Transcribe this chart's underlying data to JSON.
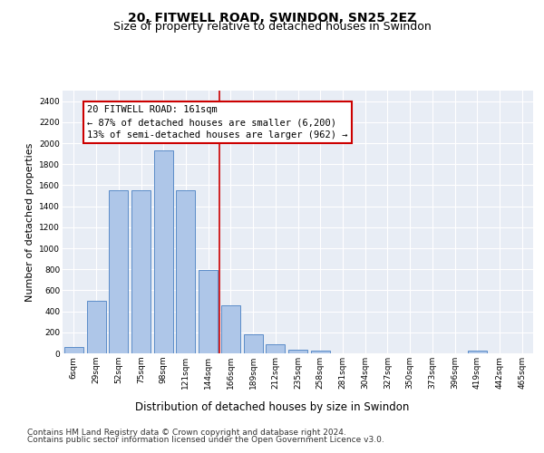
{
  "title": "20, FITWELL ROAD, SWINDON, SN25 2EZ",
  "subtitle": "Size of property relative to detached houses in Swindon",
  "xlabel": "Distribution of detached houses by size in Swindon",
  "ylabel": "Number of detached properties",
  "categories": [
    "6sqm",
    "29sqm",
    "52sqm",
    "75sqm",
    "98sqm",
    "121sqm",
    "144sqm",
    "166sqm",
    "189sqm",
    "212sqm",
    "235sqm",
    "258sqm",
    "281sqm",
    "304sqm",
    "327sqm",
    "350sqm",
    "373sqm",
    "396sqm",
    "419sqm",
    "442sqm",
    "465sqm"
  ],
  "bar_heights": [
    60,
    500,
    1550,
    1550,
    1930,
    1550,
    790,
    460,
    185,
    90,
    35,
    30,
    0,
    0,
    0,
    0,
    0,
    0,
    25,
    0,
    0
  ],
  "bar_color": "#aec6e8",
  "bar_edgecolor": "#5b8cc8",
  "bar_linewidth": 0.7,
  "vline_color": "#cc0000",
  "vline_x_index": 6,
  "annotation_text": "20 FITWELL ROAD: 161sqm\n← 87% of detached houses are smaller (6,200)\n13% of semi-detached houses are larger (962) →",
  "annotation_box_facecolor": "#ffffff",
  "annotation_box_edgecolor": "#cc0000",
  "ylim": [
    0,
    2500
  ],
  "yticks": [
    0,
    200,
    400,
    600,
    800,
    1000,
    1200,
    1400,
    1600,
    1800,
    2000,
    2200,
    2400
  ],
  "background_color": "#e8edf5",
  "footer_line1": "Contains HM Land Registry data © Crown copyright and database right 2024.",
  "footer_line2": "Contains public sector information licensed under the Open Government Licence v3.0.",
  "title_fontsize": 10,
  "subtitle_fontsize": 9,
  "xlabel_fontsize": 8.5,
  "ylabel_fontsize": 8,
  "tick_fontsize": 6.5,
  "annotation_fontsize": 7.5,
  "footer_fontsize": 6.5
}
